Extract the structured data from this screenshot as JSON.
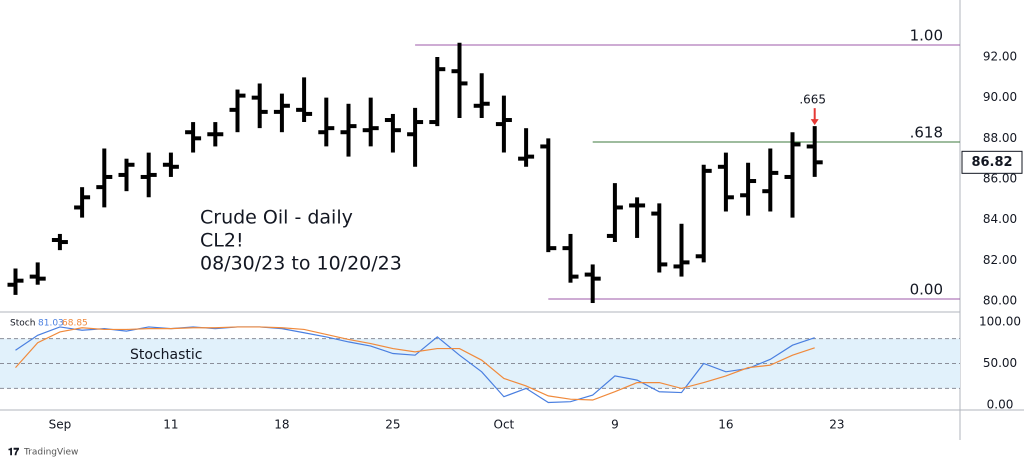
{
  "chart_data": [
    {
      "type": "ohlc",
      "color": "#000000",
      "annotations": [
        "Crude Oil - daily",
        "CL2!",
        "08/30/23 to 10/20/23"
      ],
      "categories": [
        null,
        null,
        "Sep",
        null,
        null,
        null,
        null,
        "11",
        null,
        null,
        null,
        null,
        "18",
        null,
        null,
        null,
        null,
        "25",
        null,
        null,
        null,
        null,
        "Oct",
        null,
        null,
        null,
        null,
        "9",
        null,
        null,
        null,
        null,
        "16",
        null,
        null,
        null,
        null,
        "23"
      ],
      "open": [
        80.8,
        81.2,
        83.0,
        84.6,
        85.6,
        86.2,
        86.1,
        86.7,
        88.3,
        88.2,
        89.4,
        90.0,
        89.3,
        89.4,
        88.3,
        88.3,
        88.4,
        88.9,
        88.2,
        88.8,
        91.3,
        89.6,
        88.7,
        87.0,
        87.6,
        82.6,
        81.3,
        83.2,
        84.7,
        84.3,
        81.7,
        82.2,
        86.6,
        85.2,
        85.4,
        86.1,
        87.6,
        null
      ],
      "high": [
        81.5,
        81.8,
        83.2,
        85.5,
        87.4,
        86.9,
        87.2,
        87.2,
        88.7,
        88.7,
        90.3,
        90.6,
        90.1,
        90.9,
        89.9,
        89.6,
        89.9,
        89.1,
        89.4,
        91.9,
        92.6,
        91.1,
        90.0,
        88.4,
        87.9,
        83.2,
        81.7,
        85.7,
        85.0,
        84.7,
        83.7,
        86.6,
        87.2,
        86.7,
        87.4,
        88.2,
        88.5,
        null
      ],
      "low": [
        80.4,
        80.9,
        82.6,
        84.2,
        84.7,
        85.5,
        85.2,
        86.2,
        87.4,
        87.7,
        88.4,
        88.6,
        88.4,
        88.9,
        87.7,
        87.2,
        87.7,
        87.4,
        86.7,
        88.7,
        89.1,
        89.1,
        87.4,
        86.7,
        82.5,
        81.0,
        80.0,
        83.0,
        83.2,
        81.5,
        81.3,
        82.0,
        84.5,
        84.3,
        84.5,
        84.2,
        86.2,
        null
      ],
      "close": [
        81.0,
        81.1,
        82.9,
        85.1,
        86.1,
        86.7,
        86.2,
        86.6,
        88.0,
        88.2,
        90.1,
        89.3,
        89.6,
        89.2,
        88.5,
        88.6,
        88.5,
        88.4,
        88.8,
        91.4,
        90.7,
        89.7,
        88.9,
        87.1,
        82.6,
        81.2,
        81.1,
        84.6,
        84.7,
        81.8,
        81.9,
        86.4,
        85.1,
        85.9,
        86.3,
        87.7,
        86.82,
        null
      ],
      "ylim": [
        79.46,
        94.31
      ],
      "yticks": [
        {
          "value": 80,
          "label": "80.00"
        },
        {
          "value": 82,
          "label": "82.00"
        },
        {
          "value": 84,
          "label": "84.00"
        },
        {
          "value": 86,
          "label": "86.00"
        },
        {
          "value": 88,
          "label": "88.00"
        },
        {
          "value": 90,
          "label": "90.00"
        },
        {
          "value": 92,
          "label": "92.00"
        }
      ],
      "fib_levels": [
        {
          "label": "1.00",
          "value": 92.59,
          "color": "#9c5aa8"
        },
        {
          "label": ".618",
          "value": 87.82,
          "color": "#3d7a3d"
        },
        {
          "label": "0.00",
          "value": 80.1,
          "color": "#9c5aa8"
        }
      ],
      "marker_label": ".665",
      "marker_color": "#e53935"
    },
    {
      "type": "line",
      "label": "Stochastic",
      "legend_title": "Stoch",
      "series": [
        {
          "name": "%K",
          "color": "#4a7fe0",
          "values": [
            66,
            84,
            94,
            90,
            92,
            89,
            94,
            92,
            94,
            92,
            94,
            94,
            92,
            87,
            82,
            76,
            71,
            62,
            60,
            82,
            60,
            40,
            10,
            20,
            3,
            4,
            12,
            35,
            30,
            16,
            15,
            50,
            40,
            44,
            55,
            72,
            81.03,
            null
          ]
        },
        {
          "name": "%D",
          "color": "#f08a3c",
          "values": [
            45,
            75,
            88,
            93,
            91,
            91,
            92,
            92,
            93,
            93,
            94,
            94,
            93,
            91,
            85,
            79,
            74,
            68,
            64,
            68,
            68,
            54,
            32,
            23,
            11,
            7,
            6,
            16,
            27,
            27,
            20,
            27,
            35,
            45,
            48,
            60,
            68.85,
            null
          ]
        }
      ],
      "ylim": [
        -6,
        112
      ],
      "yticks": [
        {
          "value": 0,
          "label": "0.00"
        },
        {
          "value": 50,
          "label": "50.00"
        },
        {
          "value": 100,
          "label": "100.00"
        }
      ],
      "band": [
        20,
        80
      ],
      "midline": 50
    }
  ],
  "watermark": "TradingView"
}
